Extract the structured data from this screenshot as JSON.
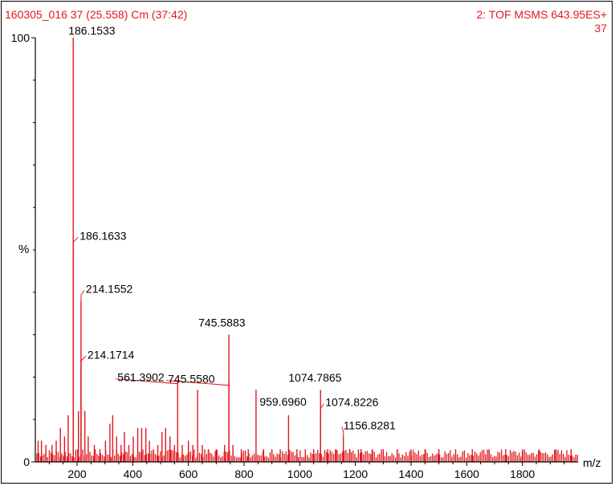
{
  "header": {
    "left": "160305_016 37 (25.558) Cm (37:42)",
    "right": "2: TOF MSMS 643.95ES+",
    "right_sub": "37"
  },
  "colors": {
    "trace": "#e0191f",
    "axis": "#000000",
    "text": "#000000"
  },
  "chart_data": {
    "type": "line",
    "xlabel": "m/z",
    "ylabel": "%",
    "xlim": [
      50,
      2000
    ],
    "ylim": [
      0,
      100
    ],
    "x_ticks": [
      "200",
      "400",
      "600",
      "800",
      "1000",
      "1200",
      "1400",
      "1600",
      "1800"
    ],
    "y_ticks": [
      "0",
      "100"
    ],
    "peaks": [
      {
        "x": 60,
        "y": 5
      },
      {
        "x": 72,
        "y": 5
      },
      {
        "x": 88,
        "y": 4
      },
      {
        "x": 110,
        "y": 4
      },
      {
        "x": 125,
        "y": 5
      },
      {
        "x": 140,
        "y": 8
      },
      {
        "x": 155,
        "y": 6
      },
      {
        "x": 168,
        "y": 11
      },
      {
        "x": 186.1533,
        "y": 100
      },
      {
        "x": 186.1633,
        "y": 52
      },
      {
        "x": 205,
        "y": 12
      },
      {
        "x": 214.1552,
        "y": 38
      },
      {
        "x": 214.1714,
        "y": 24
      },
      {
        "x": 228,
        "y": 12
      },
      {
        "x": 240,
        "y": 6
      },
      {
        "x": 262,
        "y": 4
      },
      {
        "x": 282,
        "y": 3
      },
      {
        "x": 302,
        "y": 5
      },
      {
        "x": 318,
        "y": 9
      },
      {
        "x": 328,
        "y": 11
      },
      {
        "x": 342,
        "y": 6
      },
      {
        "x": 358,
        "y": 4
      },
      {
        "x": 370,
        "y": 7
      },
      {
        "x": 386,
        "y": 4
      },
      {
        "x": 402,
        "y": 6
      },
      {
        "x": 418,
        "y": 8
      },
      {
        "x": 432,
        "y": 8
      },
      {
        "x": 447,
        "y": 8
      },
      {
        "x": 460,
        "y": 5
      },
      {
        "x": 475,
        "y": 3
      },
      {
        "x": 490,
        "y": 4
      },
      {
        "x": 505,
        "y": 7
      },
      {
        "x": 518,
        "y": 8
      },
      {
        "x": 534,
        "y": 6
      },
      {
        "x": 550,
        "y": 4
      },
      {
        "x": 561.3902,
        "y": 19
      },
      {
        "x": 578,
        "y": 4
      },
      {
        "x": 600,
        "y": 5
      },
      {
        "x": 616,
        "y": 4
      },
      {
        "x": 633,
        "y": 17
      },
      {
        "x": 650,
        "y": 4
      },
      {
        "x": 672,
        "y": 3
      },
      {
        "x": 700,
        "y": 3
      },
      {
        "x": 730,
        "y": 4
      },
      {
        "x": 745.558,
        "y": 19
      },
      {
        "x": 745.5883,
        "y": 30
      },
      {
        "x": 760,
        "y": 4
      },
      {
        "x": 790,
        "y": 3
      },
      {
        "x": 815,
        "y": 3
      },
      {
        "x": 843,
        "y": 17
      },
      {
        "x": 870,
        "y": 3
      },
      {
        "x": 900,
        "y": 3
      },
      {
        "x": 930,
        "y": 3
      },
      {
        "x": 959.696,
        "y": 11
      },
      {
        "x": 990,
        "y": 3
      },
      {
        "x": 1020,
        "y": 3
      },
      {
        "x": 1050,
        "y": 3
      },
      {
        "x": 1074.7865,
        "y": 17
      },
      {
        "x": 1074.8226,
        "y": 12
      },
      {
        "x": 1100,
        "y": 3
      },
      {
        "x": 1130,
        "y": 3
      },
      {
        "x": 1156.8281,
        "y": 6
      },
      {
        "x": 1180,
        "y": 3
      },
      {
        "x": 1220,
        "y": 3
      },
      {
        "x": 1260,
        "y": 3
      },
      {
        "x": 1300,
        "y": 3
      },
      {
        "x": 1350,
        "y": 3
      },
      {
        "x": 1400,
        "y": 3
      },
      {
        "x": 1450,
        "y": 3
      },
      {
        "x": 1500,
        "y": 3
      },
      {
        "x": 1560,
        "y": 3
      },
      {
        "x": 1620,
        "y": 3
      },
      {
        "x": 1680,
        "y": 3
      },
      {
        "x": 1740,
        "y": 3
      },
      {
        "x": 1800,
        "y": 3
      },
      {
        "x": 1860,
        "y": 3
      },
      {
        "x": 1920,
        "y": 3
      },
      {
        "x": 1975,
        "y": 3
      }
    ],
    "baseline_noise_level": 2,
    "peak_labels": [
      {
        "text": "186.1533",
        "x": 186.1533,
        "y": 100
      },
      {
        "text": "186.1633",
        "x": 186.1633,
        "y": 52
      },
      {
        "text": "214.1552",
        "x": 214.1552,
        "y": 38
      },
      {
        "text": "214.1714",
        "x": 214.1714,
        "y": 24
      },
      {
        "text": "745.5883",
        "x": 745.5883,
        "y": 30
      },
      {
        "text": "745.5580",
        "x": 745.558,
        "y": 19
      },
      {
        "text": "561.3902",
        "x": 561.3902,
        "y": 19
      },
      {
        "text": "1074.7865",
        "x": 1074.7865,
        "y": 17
      },
      {
        "text": "959.6960",
        "x": 959.696,
        "y": 11
      },
      {
        "text": "1074.8226",
        "x": 1074.8226,
        "y": 12
      },
      {
        "text": "1156.8281",
        "x": 1156.8281,
        "y": 6
      }
    ]
  }
}
